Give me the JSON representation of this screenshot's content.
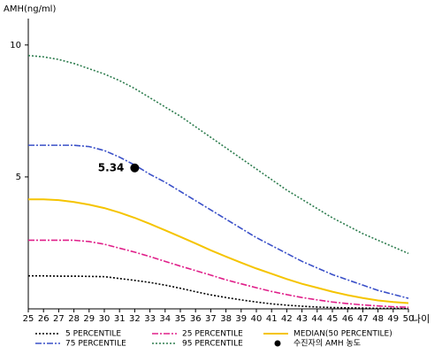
{
  "chart_data": {
    "type": "line",
    "y_label": "AMH(ng/ml)",
    "x_label": "나이",
    "x": [
      25,
      26,
      27,
      28,
      29,
      30,
      31,
      32,
      33,
      34,
      35,
      36,
      37,
      38,
      39,
      40,
      41,
      42,
      43,
      44,
      45,
      46,
      47,
      48,
      49,
      50
    ],
    "xlim": [
      25,
      50
    ],
    "xticks": [
      25,
      26,
      27,
      28,
      29,
      30,
      31,
      32,
      33,
      34,
      35,
      36,
      37,
      38,
      39,
      40,
      41,
      42,
      43,
      44,
      45,
      46,
      47,
      48,
      49,
      50
    ],
    "ylim": [
      0,
      11
    ],
    "yticks": [
      5,
      10
    ],
    "series": [
      {
        "name": "5 PERCENTILE",
        "color": "#000000",
        "style": "dotted",
        "values": [
          1.25,
          1.25,
          1.24,
          1.24,
          1.23,
          1.22,
          1.15,
          1.08,
          1.0,
          0.9,
          0.78,
          0.65,
          0.53,
          0.43,
          0.34,
          0.26,
          0.19,
          0.14,
          0.1,
          0.07,
          0.05,
          0.04,
          0.03,
          0.02,
          0.02,
          0.01
        ]
      },
      {
        "name": "25 PERCENTILE",
        "color": "#e0208a",
        "style": "dashdot",
        "values": [
          2.6,
          2.6,
          2.6,
          2.6,
          2.55,
          2.45,
          2.3,
          2.15,
          1.98,
          1.8,
          1.62,
          1.45,
          1.28,
          1.1,
          0.95,
          0.8,
          0.66,
          0.54,
          0.43,
          0.34,
          0.26,
          0.2,
          0.15,
          0.11,
          0.08,
          0.06
        ]
      },
      {
        "name": "MEDIAN(50 PERCENTILE)",
        "color": "#f5c400",
        "style": "solid",
        "values": [
          4.15,
          4.15,
          4.12,
          4.05,
          3.95,
          3.82,
          3.65,
          3.45,
          3.22,
          2.98,
          2.73,
          2.48,
          2.22,
          1.98,
          1.75,
          1.53,
          1.33,
          1.13,
          0.95,
          0.8,
          0.65,
          0.52,
          0.41,
          0.32,
          0.26,
          0.22
        ]
      },
      {
        "name": "75 PERCENTILE",
        "color": "#3a50c8",
        "style": "dashdot",
        "values": [
          6.2,
          6.2,
          6.2,
          6.2,
          6.15,
          6.0,
          5.75,
          5.45,
          5.1,
          4.8,
          4.45,
          4.1,
          3.75,
          3.4,
          3.05,
          2.7,
          2.4,
          2.1,
          1.8,
          1.55,
          1.3,
          1.1,
          0.9,
          0.7,
          0.55,
          0.4
        ]
      },
      {
        "name": "95 PERCENTILE",
        "color": "#2e7d4f",
        "style": "dotted",
        "values": [
          9.6,
          9.55,
          9.45,
          9.3,
          9.1,
          8.9,
          8.65,
          8.35,
          8.0,
          7.65,
          7.3,
          6.9,
          6.5,
          6.1,
          5.7,
          5.3,
          4.9,
          4.5,
          4.15,
          3.8,
          3.45,
          3.15,
          2.85,
          2.6,
          2.35,
          2.1
        ]
      }
    ],
    "marker": {
      "name": "수진자의 AMH 농도",
      "color": "#000000",
      "x": 32,
      "y": 5.34
    }
  }
}
